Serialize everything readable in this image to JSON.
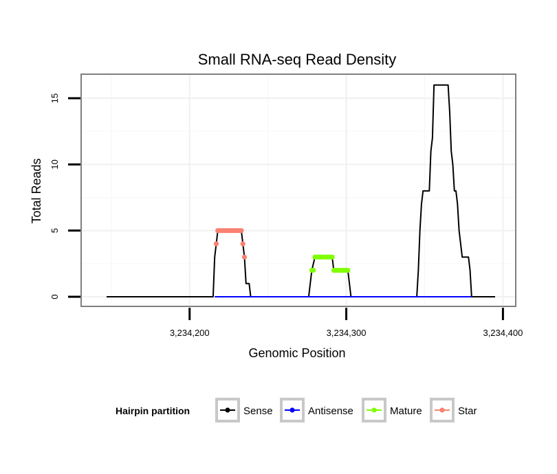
{
  "chart_data": {
    "type": "line",
    "title": "Small RNA-seq Read Density",
    "xlabel": "Genomic Position",
    "ylabel": "Total Reads",
    "xlim": [
      3234147,
      3234400
    ],
    "ylim": [
      0,
      16.5
    ],
    "x_ticks": [
      3234200,
      3234300,
      3234400
    ],
    "x_tick_labels": [
      "3,234,200",
      "3,234,300",
      "3,234,400"
    ],
    "y_ticks": [
      0,
      5,
      10,
      15
    ],
    "y_tick_labels": [
      "0",
      "5",
      "10",
      "15"
    ],
    "grid": true,
    "legend": {
      "title": "Hairpin partition",
      "position": "bottom",
      "entries": [
        {
          "name": "Sense",
          "color": "#000000"
        },
        {
          "name": "Antisense",
          "color": "#0000ff"
        },
        {
          "name": "Mature",
          "color": "#7fff00"
        },
        {
          "name": "Star",
          "color": "#fa8072"
        }
      ]
    },
    "series": [
      {
        "name": "Sense",
        "color": "#000000",
        "style": "line",
        "points": [
          [
            3234147,
            0
          ],
          [
            3234215,
            0
          ],
          [
            3234216,
            3
          ],
          [
            3234217,
            4
          ],
          [
            3234218,
            5
          ],
          [
            3234233,
            5
          ],
          [
            3234234,
            4
          ],
          [
            3234235,
            3
          ],
          [
            3234236,
            1
          ],
          [
            3234238,
            1
          ],
          [
            3234239,
            0
          ],
          [
            3234276,
            0
          ],
          [
            3234277,
            1
          ],
          [
            3234278,
            2
          ],
          [
            3234280,
            3
          ],
          [
            3234291,
            3
          ],
          [
            3234292,
            2
          ],
          [
            3234301,
            2
          ],
          [
            3234302,
            1
          ],
          [
            3234303,
            0
          ],
          [
            3234345,
            0
          ],
          [
            3234346,
            2
          ],
          [
            3234347,
            5
          ],
          [
            3234348,
            7
          ],
          [
            3234349,
            8
          ],
          [
            3234353,
            8
          ],
          [
            3234354,
            11
          ],
          [
            3234355,
            12
          ],
          [
            3234356,
            16
          ],
          [
            3234365,
            16
          ],
          [
            3234366,
            14
          ],
          [
            3234367,
            11
          ],
          [
            3234368,
            10
          ],
          [
            3234369,
            8
          ],
          [
            3234370,
            8
          ],
          [
            3234371,
            7
          ],
          [
            3234372,
            5
          ],
          [
            3234373,
            4
          ],
          [
            3234374,
            3
          ],
          [
            3234378,
            3
          ],
          [
            3234379,
            2
          ],
          [
            3234380,
            0
          ],
          [
            3234395,
            0
          ]
        ]
      },
      {
        "name": "Antisense",
        "color": "#0000ff",
        "style": "line",
        "points": [
          [
            3234216,
            0
          ],
          [
            3234238,
            0
          ],
          [
            3234277,
            0
          ],
          [
            3234302,
            0
          ],
          [
            3234346,
            0
          ],
          [
            3234380,
            0
          ]
        ]
      },
      {
        "name": "Mature",
        "color": "#7fff00",
        "style": "points",
        "points": [
          [
            3234278,
            2
          ],
          [
            3234279,
            2
          ],
          [
            3234280,
            3
          ],
          [
            3234281,
            3
          ],
          [
            3234282,
            3
          ],
          [
            3234283,
            3
          ],
          [
            3234284,
            3
          ],
          [
            3234285,
            3
          ],
          [
            3234286,
            3
          ],
          [
            3234287,
            3
          ],
          [
            3234288,
            3
          ],
          [
            3234289,
            3
          ],
          [
            3234290,
            3
          ],
          [
            3234291,
            3
          ],
          [
            3234292,
            2
          ],
          [
            3234293,
            2
          ],
          [
            3234294,
            2
          ],
          [
            3234295,
            2
          ],
          [
            3234296,
            2
          ],
          [
            3234297,
            2
          ],
          [
            3234298,
            2
          ],
          [
            3234299,
            2
          ],
          [
            3234300,
            2
          ],
          [
            3234301,
            2
          ]
        ]
      },
      {
        "name": "Star",
        "color": "#fa8072",
        "style": "points",
        "points": [
          [
            3234217,
            4
          ],
          [
            3234218,
            5
          ],
          [
            3234219,
            5
          ],
          [
            3234220,
            5
          ],
          [
            3234221,
            5
          ],
          [
            3234222,
            5
          ],
          [
            3234223,
            5
          ],
          [
            3234224,
            5
          ],
          [
            3234225,
            5
          ],
          [
            3234226,
            5
          ],
          [
            3234227,
            5
          ],
          [
            3234228,
            5
          ],
          [
            3234229,
            5
          ],
          [
            3234230,
            5
          ],
          [
            3234231,
            5
          ],
          [
            3234232,
            5
          ],
          [
            3234233,
            5
          ],
          [
            3234234,
            4
          ],
          [
            3234235,
            3
          ]
        ]
      }
    ]
  }
}
